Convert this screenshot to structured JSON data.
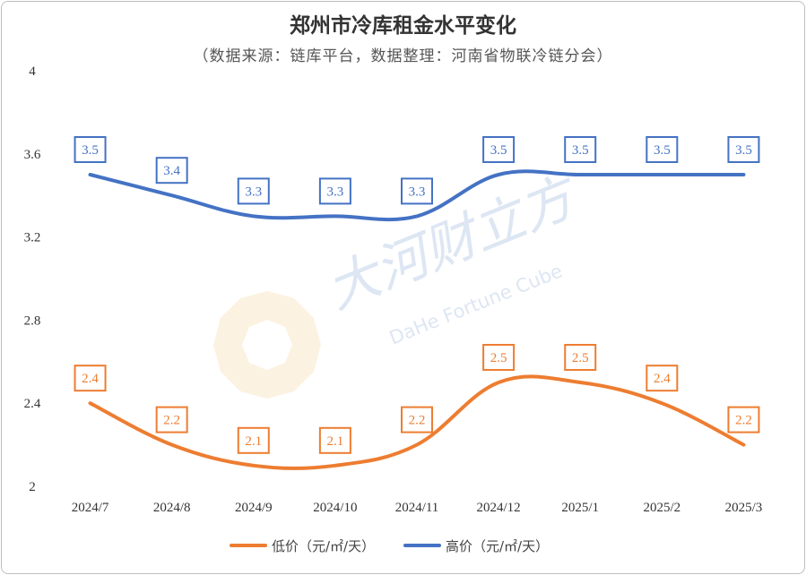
{
  "title": "郑州市冷库租金水平变化",
  "subtitle": "（数据来源：链库平台，数据整理：河南省物联冷链分会）",
  "watermark": {
    "text_cn": "大河财立方",
    "text_en": "DaHe Fortune Cube"
  },
  "colors": {
    "low": "#ED7D31",
    "high": "#4472C4"
  },
  "chart_data": {
    "type": "line",
    "title": "郑州市冷库租金水平变化",
    "subtitle": "（数据来源：链库平台，数据整理：河南省物联冷链分会）",
    "categories": [
      "2024/7",
      "2024/8",
      "2024/9",
      "2024/10",
      "2024/11",
      "2024/12",
      "2025/1",
      "2025/2",
      "2025/3"
    ],
    "series": [
      {
        "name": "低价（元/㎡/天）",
        "values": [
          2.4,
          2.2,
          2.1,
          2.1,
          2.2,
          2.5,
          2.5,
          2.4,
          2.2
        ],
        "color": "#ED7D31"
      },
      {
        "name": "高价（元/㎡/天）",
        "values": [
          3.5,
          3.4,
          3.3,
          3.3,
          3.3,
          3.5,
          3.5,
          3.5,
          3.5
        ],
        "color": "#4472C4"
      }
    ],
    "yticks": [
      "2",
      "2.4",
      "2.8",
      "3.2",
      "3.6",
      "4"
    ],
    "ylim": [
      2,
      4
    ],
    "smooth": true,
    "data_labels": true,
    "grid": false,
    "legend": "bottom"
  }
}
